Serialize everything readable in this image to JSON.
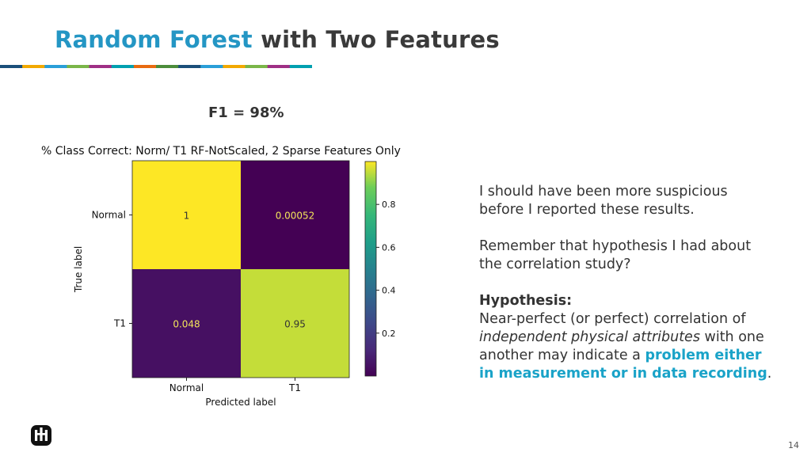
{
  "slide": {
    "title_accent": "Random Forest",
    "title_rest": " with Two Features",
    "f1_label": "F1 = 98%",
    "page_number": "14",
    "divider_colors": [
      "#1b4f7a",
      "#f2a900",
      "#2a9fd8",
      "#7ab648",
      "#9f2f85",
      "#00a0b0",
      "#e86a10",
      "#4b8c3a",
      "#1b4f7a",
      "#2a9fd8",
      "#f2a900",
      "#7ab648",
      "#9f2f85",
      "#00a0b0"
    ]
  },
  "notes": {
    "p1": "I should have have been more suspicious",
    "p1b": "before I reported these results.",
    "p2": "Remember that hypothesis I had about",
    "p2b": "the correlation study?",
    "hyp_head": "Hypothesis:",
    "hyp_1": "Near-perfect (or perfect) correlation of",
    "hyp_em": "independent physical attributes",
    "hyp_2": " with one",
    "hyp_3": "another may indicate a ",
    "hyp_hl_1": "problem either",
    "hyp_hl_2": "in measurement or in data recording",
    "hyp_end": "."
  },
  "chart_data": {
    "type": "heatmap",
    "title": "% Class Correct: Norm/ T1    RF-NotScaled, 2 Sparse Features Only",
    "xlabel": "Predicted label",
    "ylabel": "True label",
    "x_categories": [
      "Normal",
      "T1"
    ],
    "y_categories": [
      "Normal",
      "T1"
    ],
    "values": [
      [
        1,
        0.00052
      ],
      [
        0.048,
        0.95
      ]
    ],
    "value_labels": [
      [
        "1",
        "0.00052"
      ],
      [
        "0.048",
        "0.95"
      ]
    ],
    "colorbar": {
      "range": [
        0,
        1
      ],
      "ticks": [
        0.2,
        0.4,
        0.6,
        0.8
      ],
      "tick_labels": [
        "0.2",
        "0.4",
        "0.6",
        "0.8"
      ],
      "colormap": "viridis"
    }
  }
}
